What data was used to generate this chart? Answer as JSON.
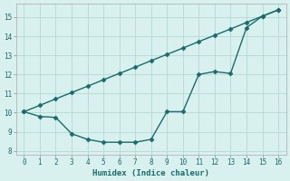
{
  "xlabel": "Humidex (Indice chaleur)",
  "bg_color": "#d8f0ee",
  "grid_color": "#b8dcd8",
  "line_color": "#1a6b6b",
  "x_straight": [
    0,
    1,
    2,
    3,
    4,
    5,
    6,
    7,
    8,
    9,
    10,
    11,
    12,
    13,
    14,
    15,
    16
  ],
  "y_straight": [
    10.05,
    10.38,
    10.72,
    11.05,
    11.38,
    11.72,
    12.05,
    12.38,
    12.72,
    13.05,
    13.38,
    13.72,
    14.05,
    14.38,
    14.72,
    15.05,
    15.38
  ],
  "x_curved": [
    0,
    1,
    2,
    3,
    4,
    5,
    6,
    7,
    8,
    9,
    10,
    11,
    12,
    13,
    14,
    15,
    16
  ],
  "y_curved": [
    10.05,
    9.8,
    9.75,
    8.9,
    8.6,
    8.45,
    8.45,
    8.45,
    8.6,
    10.05,
    10.05,
    12.0,
    12.15,
    12.05,
    14.45,
    15.05,
    15.38
  ],
  "xlim": [
    -0.5,
    16.5
  ],
  "ylim": [
    7.8,
    15.7
  ],
  "xticks": [
    0,
    1,
    2,
    3,
    4,
    5,
    6,
    7,
    8,
    9,
    10,
    11,
    12,
    13,
    14,
    15,
    16
  ],
  "yticks": [
    8,
    9,
    10,
    11,
    12,
    13,
    14,
    15
  ],
  "marker": "D",
  "marker_size": 2.5,
  "line_width": 1.0
}
